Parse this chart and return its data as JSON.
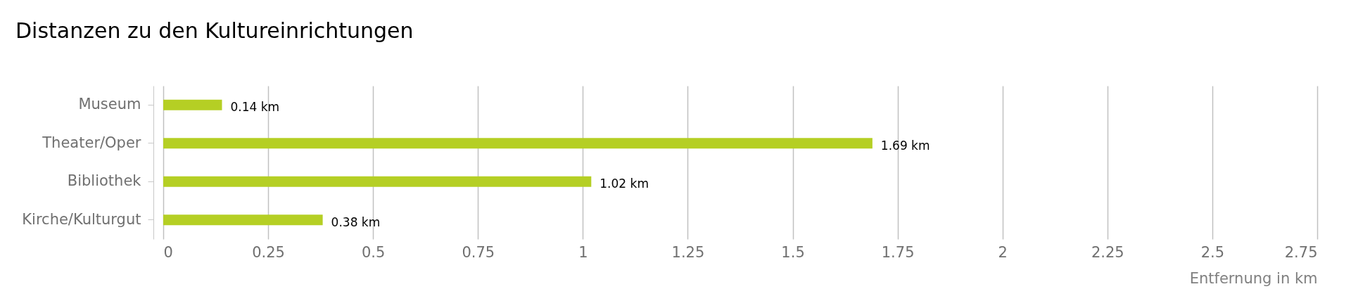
{
  "chart_data": {
    "type": "bar",
    "orientation": "horizontal",
    "title": "Distanzen zu den Kultureinrichtungen",
    "xlabel": "Entfernung in km",
    "categories": [
      "Museum",
      "Theater/Oper",
      "Bibliothek",
      "Kirche/Kulturgut"
    ],
    "values": [
      0.14,
      1.69,
      1.02,
      0.38
    ],
    "value_labels": [
      "0.14 km",
      "1.69 km",
      "1.02 km",
      "0.38 km"
    ],
    "color": "#b5cf24",
    "xlim": [
      0,
      2.75
    ],
    "xticks": [
      0,
      0.25,
      0.5,
      0.75,
      1,
      1.25,
      1.5,
      1.75,
      2,
      2.25,
      2.5,
      2.75
    ],
    "grid": "x"
  }
}
